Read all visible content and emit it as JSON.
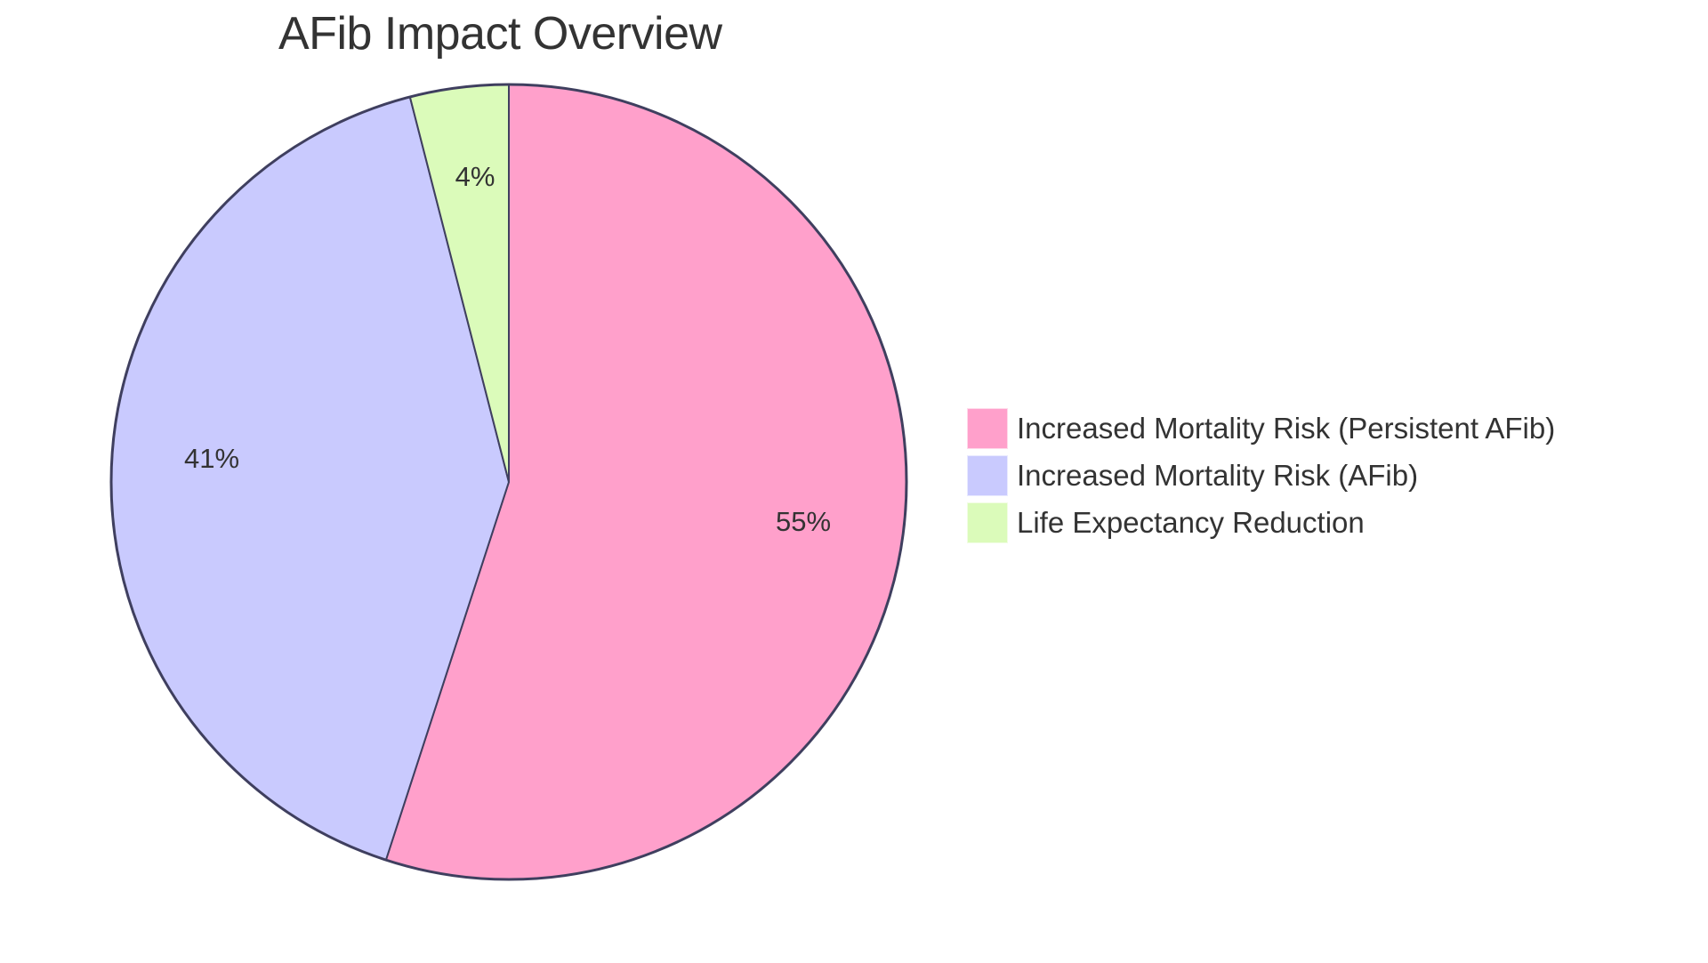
{
  "chart_data": {
    "type": "pie",
    "title": "AFib Impact Overview",
    "categories": [
      "Increased Mortality Risk (Persistent AFib)",
      "Increased Mortality Risk (AFib)",
      "Life Expectancy Reduction"
    ],
    "values": [
      55,
      41,
      4
    ],
    "labels": [
      "55%",
      "41%",
      "4%"
    ],
    "colors": [
      "#FFA0CB",
      "#C9CAFE",
      "#DBFBBA"
    ],
    "stroke_color": "#3F3F5F",
    "legend_position": "right"
  },
  "title": "AFib Impact Overview",
  "legend": {
    "items": [
      {
        "label": "Increased Mortality Risk (Persistent AFib)",
        "color": "#FFA0CB"
      },
      {
        "label": "Increased Mortality Risk (AFib)",
        "color": "#C9CAFE"
      },
      {
        "label": "Life Expectancy Reduction",
        "color": "#DBFBBA"
      }
    ]
  },
  "slices": [
    {
      "label": "55%"
    },
    {
      "label": "41%"
    },
    {
      "label": "4%"
    }
  ]
}
